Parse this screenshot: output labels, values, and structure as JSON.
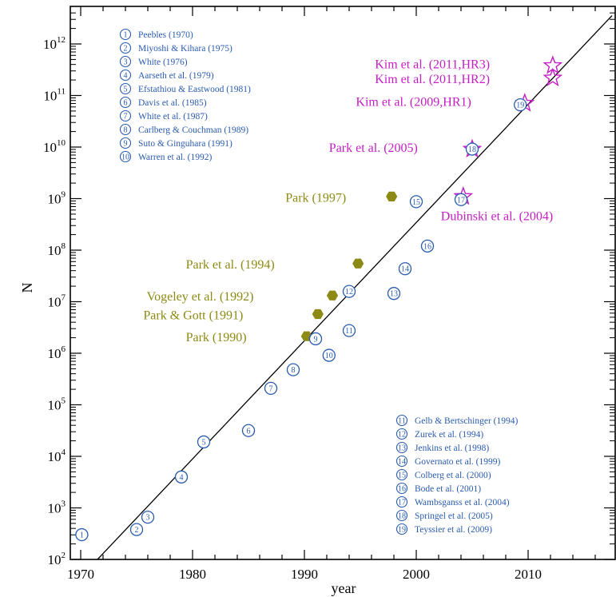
{
  "chart_data": {
    "type": "scatter",
    "xlabel": "year",
    "ylabel": "N",
    "x_ticks": [
      "1970",
      "1980",
      "1990",
      "2000",
      "2010"
    ],
    "y_ticks": [
      "10",
      "10",
      "10",
      "10",
      "10",
      "10",
      "10",
      "10",
      "10",
      "10",
      "10"
    ],
    "y_tick_exponents": [
      "2",
      "3",
      "4",
      "5",
      "6",
      "7",
      "8",
      "9",
      "10",
      "11",
      "12"
    ],
    "xlim": [
      1969,
      2017.5
    ],
    "ylim_log10": [
      2,
      12.7
    ],
    "yscale": "log",
    "fit_line": {
      "x": [
        1971.5,
        2017.5
      ],
      "log10_y": [
        2.0,
        12.55
      ]
    },
    "colors": {
      "blue": "#2a5bb0",
      "olive": "#8c8a14",
      "magenta": "#c41ec4",
      "axes": "#000000"
    },
    "series": [
      {
        "marker": "numbered-circle",
        "points": [
          {
            "n": "1",
            "x": 1970.1,
            "log10_y": 2.48
          },
          {
            "n": "2",
            "x": 1975.0,
            "log10_y": 2.58
          },
          {
            "n": "3",
            "x": 1976.0,
            "log10_y": 2.82
          },
          {
            "n": "4",
            "x": 1979.0,
            "log10_y": 3.6
          },
          {
            "n": "5",
            "x": 1981.0,
            "log10_y": 4.28
          },
          {
            "n": "6",
            "x": 1985.0,
            "log10_y": 4.5
          },
          {
            "n": "7",
            "x": 1987.0,
            "log10_y": 5.32
          },
          {
            "n": "8",
            "x": 1989.0,
            "log10_y": 5.68
          },
          {
            "n": "9",
            "x": 1991.0,
            "log10_y": 6.28
          },
          {
            "n": "10",
            "x": 1992.2,
            "log10_y": 5.96
          },
          {
            "n": "11",
            "x": 1994.0,
            "log10_y": 6.44
          },
          {
            "n": "12",
            "x": 1994.0,
            "log10_y": 7.2
          },
          {
            "n": "13",
            "x": 1998.0,
            "log10_y": 7.16
          },
          {
            "n": "14",
            "x": 1999.0,
            "log10_y": 7.64
          },
          {
            "n": "15",
            "x": 2000.0,
            "log10_y": 8.94
          },
          {
            "n": "16",
            "x": 2001.0,
            "log10_y": 8.08
          },
          {
            "n": "17",
            "x": 2004.0,
            "log10_y": 8.98
          },
          {
            "n": "18",
            "x": 2005.0,
            "log10_y": 9.96
          },
          {
            "n": "19",
            "x": 2009.3,
            "log10_y": 10.82
          }
        ]
      },
      {
        "marker": "filled-hexagon",
        "points": [
          {
            "x": 1990.2,
            "log10_y": 6.33
          },
          {
            "x": 1991.2,
            "log10_y": 6.76
          },
          {
            "x": 1992.5,
            "log10_y": 7.12
          },
          {
            "x": 1994.8,
            "log10_y": 7.74
          },
          {
            "x": 1997.8,
            "log10_y": 9.04
          }
        ]
      },
      {
        "marker": "open-star",
        "points": [
          {
            "x": 2004.2,
            "log10_y": 9.04
          },
          {
            "x": 2005.0,
            "log10_y": 9.96
          },
          {
            "x": 2009.7,
            "log10_y": 10.85
          },
          {
            "x": 2012.2,
            "log10_y": 11.34
          },
          {
            "x": 2012.2,
            "log10_y": 11.58
          }
        ]
      }
    ],
    "annotations": {
      "olive": [
        {
          "text": "Park (1990)",
          "x": 1979.4,
          "log10_y": 6.23
        },
        {
          "text": "Park & Gott (1991)",
          "x": 1975.6,
          "log10_y": 6.66
        },
        {
          "text": "Vogeley et al. (1992)",
          "x": 1975.9,
          "log10_y": 7.02
        },
        {
          "text": "Park et al. (1994)",
          "x": 1979.4,
          "log10_y": 7.64
        },
        {
          "text": "Park (1997)",
          "x": 1988.3,
          "log10_y": 8.94
        }
      ],
      "magenta": [
        {
          "text": "Dubinski et al. (2004)",
          "x": 2002.2,
          "log10_y": 8.58
        },
        {
          "text": "Park et al. (2005)",
          "x": 1992.2,
          "log10_y": 9.91
        },
        {
          "text": "Kim et al. (2009,HR1)",
          "x": 1994.6,
          "log10_y": 10.8
        },
        {
          "text": "Kim et al. (2011,HR2)",
          "x": 1996.3,
          "log10_y": 11.24
        },
        {
          "text": "Kim et al. (2011,HR3)",
          "x": 1996.3,
          "log10_y": 11.53
        }
      ]
    },
    "legend_top_left": [
      {
        "n": "1",
        "label": "Peebles (1970)"
      },
      {
        "n": "2",
        "label": "Miyoshi & Kihara (1975)"
      },
      {
        "n": "3",
        "label": "White (1976)"
      },
      {
        "n": "4",
        "label": "Aarseth et al. (1979)"
      },
      {
        "n": "5",
        "label": "Efstathiou & Eastwood (1981)"
      },
      {
        "n": "6",
        "label": "Davis et al. (1985)"
      },
      {
        "n": "7",
        "label": "White et al. (1987)"
      },
      {
        "n": "8",
        "label": "Carlberg & Couchman (1989)"
      },
      {
        "n": "9",
        "label": "Suto & Ginguhara (1991)"
      },
      {
        "n": "10",
        "label": "Warren et al. (1992)"
      }
    ],
    "legend_bottom_right": [
      {
        "n": "11",
        "label": "Gelb & Bertschinger (1994)"
      },
      {
        "n": "12",
        "label": "Zurek et al. (1994)"
      },
      {
        "n": "13",
        "label": "Jenkins et al. (1998)"
      },
      {
        "n": "14",
        "label": "Governato et al. (1999)"
      },
      {
        "n": "15",
        "label": "Colberg et al. (2000)"
      },
      {
        "n": "16",
        "label": "Bode et al. (2001)"
      },
      {
        "n": "17",
        "label": "Wambsganss et al. (2004)"
      },
      {
        "n": "18",
        "label": "Springel et al. (2005)"
      },
      {
        "n": "19",
        "label": "Teyssier et al. (2009)"
      }
    ]
  }
}
